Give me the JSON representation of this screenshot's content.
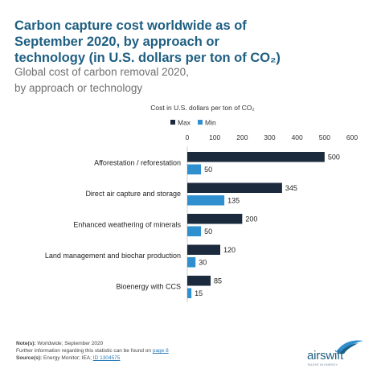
{
  "title_lines": [
    "Carbon capture cost worldwide as of",
    "September 2020, by approach or",
    "technology (in U.S. dollars per ton of CO₂)"
  ],
  "subtitle_lines": [
    "Global cost of carbon removal 2020,",
    "by approach or technology"
  ],
  "chart_data": {
    "type": "bar",
    "orientation": "horizontal",
    "title": "Cost in U.S. dollars per ton of CO₂",
    "categories": [
      "Afforestation / reforestation",
      "Direct air capture and storage",
      "Enhanced weathering of minerals",
      "Land management and biochar production",
      "Bioenergy with CCS"
    ],
    "series": [
      {
        "name": "Max",
        "values": [
          500,
          345,
          200,
          120,
          85
        ],
        "color": "#1b2a3d"
      },
      {
        "name": "Min",
        "values": [
          50,
          135,
          50,
          30,
          15
        ],
        "color": "#2f8fcf"
      }
    ],
    "xlim": [
      0,
      600
    ],
    "xticks": [
      "0",
      "100",
      "200",
      "300",
      "400",
      "500",
      "600"
    ],
    "legend": "top-right",
    "grid": false
  },
  "footer": {
    "note_label": "Note(s):",
    "note_text": "Worldwide; September 2020",
    "further_text": "Further information regarding this statistic can be found on",
    "further_link": "page 8",
    "source_label": "Source(s):",
    "source_text": "Energy Monitor; IEA;",
    "source_link": "ID 1304575"
  },
  "logo": {
    "name": "airswift",
    "tagline": "TALENT IN ENERGY",
    "icon": "swift-bird-icon"
  }
}
